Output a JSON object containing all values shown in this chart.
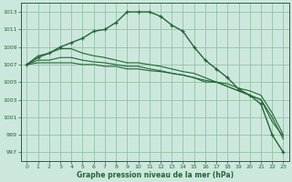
{
  "background_color": "#cce8dd",
  "grid_color": "#88bb99",
  "line_color": "#226633",
  "xlabel": "Graphe pression niveau de la mer (hPa)",
  "xlabel_color": "#226633",
  "tick_color": "#226633",
  "ylim": [
    996.0,
    1014.0
  ],
  "xlim": [
    -0.5,
    23.5
  ],
  "yticks": [
    997,
    999,
    1001,
    1003,
    1005,
    1007,
    1009,
    1011,
    1013
  ],
  "xticks": [
    0,
    1,
    2,
    3,
    4,
    5,
    6,
    7,
    8,
    9,
    10,
    11,
    12,
    13,
    14,
    15,
    16,
    17,
    18,
    19,
    20,
    21,
    22,
    23
  ],
  "series": [
    [
      1007.0,
      1007.8,
      1008.3,
      1009.0,
      1009.5,
      1010.0,
      1010.8,
      1011.0,
      1011.8,
      1013.0,
      1013.0,
      1013.0,
      1012.5,
      1011.5,
      1010.8,
      1009.0,
      1007.5,
      1006.5,
      1005.5,
      1004.2,
      1003.5,
      1002.5,
      999.0,
      997.0
    ],
    [
      1007.0,
      1008.0,
      1008.3,
      1008.8,
      1008.8,
      1008.3,
      1008.0,
      1007.8,
      1007.5,
      1007.2,
      1007.2,
      1007.0,
      1006.8,
      1006.5,
      1006.2,
      1006.0,
      1005.5,
      1005.0,
      1004.5,
      1004.0,
      1003.5,
      1003.0,
      1001.0,
      998.5
    ],
    [
      1007.0,
      1007.5,
      1007.5,
      1007.8,
      1007.8,
      1007.5,
      1007.3,
      1007.2,
      1007.0,
      1006.8,
      1006.8,
      1006.5,
      1006.3,
      1006.0,
      1005.8,
      1005.5,
      1005.0,
      1005.0,
      1004.5,
      1004.0,
      1003.5,
      1003.0,
      1000.5,
      998.8
    ],
    [
      1007.0,
      1007.2,
      1007.2,
      1007.2,
      1007.2,
      1007.0,
      1007.0,
      1006.8,
      1006.8,
      1006.5,
      1006.5,
      1006.3,
      1006.2,
      1006.0,
      1005.8,
      1005.5,
      1005.2,
      1005.0,
      1004.8,
      1004.3,
      1004.0,
      1003.5,
      1001.5,
      999.0
    ]
  ]
}
